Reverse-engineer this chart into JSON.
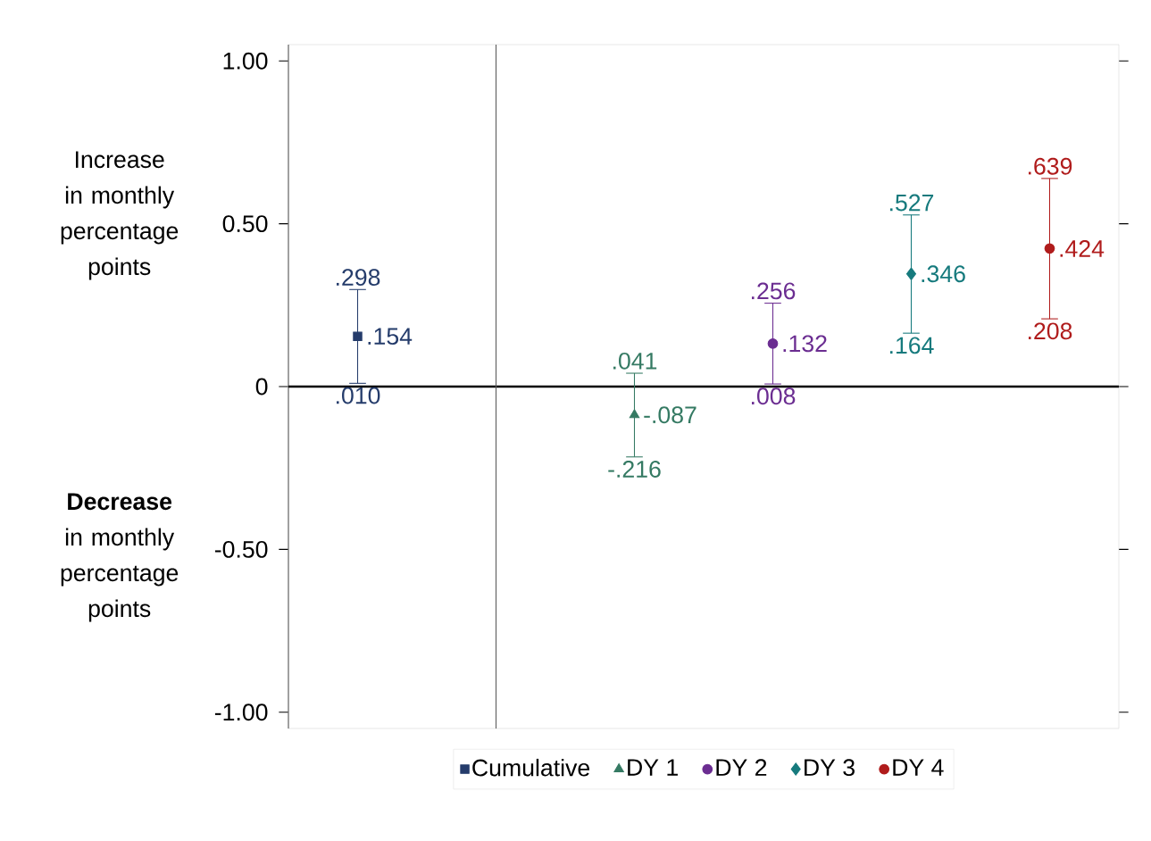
{
  "chart_data": {
    "type": "scatter",
    "annotations": [
      "Increase in monthly percentage points",
      "**Decrease** in monthly percentage points",
      {
        "text": ".298",
        "y": 0.298
      },
      {
        "text": ".010",
        "y": 0.01
      },
      {
        "text": ".041",
        "y": 0.041
      },
      {
        "text": "-.216",
        "y": -0.216
      },
      {
        "text": ".256",
        "y": 0.256
      },
      {
        "text": ".008",
        "y": 0.008
      },
      {
        "text": ".527",
        "y": 0.527
      },
      {
        "text": ".164",
        "y": 0.164
      },
      {
        "text": ".639",
        "y": 0.639
      },
      {
        "text": ".208",
        "y": 0.208
      }
    ],
    "categories": [
      null,
      null,
      null,
      null,
      null,
      null
    ],
    "series": [
      {
        "name": "Cumulative",
        "color": "#253c6b",
        "values": [
          0.154,
          null,
          null,
          null,
          null,
          null
        ],
        "errors": [
          [
            0.01,
            0.298
          ],
          null,
          null,
          null,
          null,
          null
        ],
        "value_labels": [
          ".154",
          null,
          null,
          null,
          null,
          null
        ],
        "marker": "square"
      },
      {
        "name": "DY 1",
        "color": "#357a63",
        "values": [
          null,
          null,
          -0.087,
          null,
          null,
          null
        ],
        "errors": [
          null,
          null,
          [
            -0.216,
            0.041
          ],
          null,
          null,
          null
        ],
        "value_labels": [
          null,
          null,
          "-.087",
          null,
          null,
          null
        ],
        "marker": "triangle"
      },
      {
        "name": "DY 2",
        "color": "#6b2d91",
        "values": [
          null,
          null,
          null,
          0.132,
          null,
          null
        ],
        "errors": [
          null,
          null,
          null,
          [
            0.008,
            0.256
          ],
          null,
          null
        ],
        "value_labels": [
          null,
          null,
          null,
          ".132",
          null,
          null
        ],
        "marker": "circle"
      },
      {
        "name": "DY 3",
        "color": "#167a7d",
        "values": [
          null,
          null,
          null,
          null,
          0.346,
          null
        ],
        "errors": [
          null,
          null,
          null,
          null,
          [
            0.164,
            0.527
          ],
          null
        ],
        "value_labels": [
          null,
          null,
          null,
          null,
          ".346",
          null
        ],
        "marker": "diamond"
      },
      {
        "name": "DY 4",
        "color": "#b01c1c",
        "values": [
          null,
          null,
          null,
          null,
          null,
          0.424
        ],
        "errors": [
          null,
          null,
          null,
          null,
          null,
          [
            0.208,
            0.639
          ]
        ],
        "value_labels": [
          null,
          null,
          null,
          null,
          null,
          ".424"
        ],
        "marker": "circle"
      }
    ],
    "ylim": [
      -1.05,
      1.05
    ],
    "yticks": [
      {
        "value": 1,
        "label": "1.00"
      },
      {
        "value": 0.5,
        "label": "0.50"
      },
      {
        "value": 0,
        "label": "0"
      },
      {
        "value": -0.5,
        "label": "-0.50"
      },
      {
        "value": -1,
        "label": "-1.00"
      }
    ],
    "ref_lines": [
      {
        "axis": "y",
        "value": 0,
        "color": "#000000"
      }
    ],
    "tick_labels": "y",
    "legend": "bottom",
    "grid": false
  }
}
